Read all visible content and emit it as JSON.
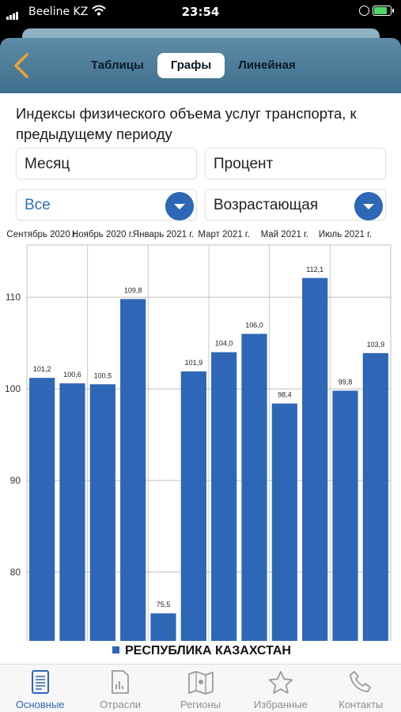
{
  "status_bar": {
    "carrier": "Beeline KZ",
    "time": "23:54"
  },
  "header": {
    "tabs": [
      {
        "label": "Таблицы"
      },
      {
        "label": "Графы",
        "active": true
      },
      {
        "label": "Линейная"
      }
    ]
  },
  "page_title": "Индексы физического объема услуг транспорта, к предыдущему периоду",
  "filters": {
    "period": "Месяц",
    "unit": "Процент",
    "region": "Все",
    "sort": "Возрастающая"
  },
  "chart_data": {
    "type": "bar",
    "title": "",
    "categories": [
      "Сентябрь 2020 г.",
      "",
      "Ноябрь 2020 г.",
      "",
      "Январь 2021 г.",
      "",
      "Март 2021 г.",
      "",
      "Май 2021 г.",
      "",
      "Июль 2021 г.",
      ""
    ],
    "top_axis_labels": [
      "Сентябрь 2020 г.",
      "Ноябрь 2020 г.",
      "Январь 2021 г.",
      "Март 2021 г.",
      "Май 2021 г.",
      "Июль 2021 г."
    ],
    "series": [
      {
        "name": "РЕСПУБЛИКА КАЗАХСТАН",
        "values": [
          101.2,
          100.6,
          100.5,
          109.8,
          75.5,
          101.9,
          104.0,
          106.0,
          98.4,
          112.1,
          99.8,
          103.9
        ]
      }
    ],
    "data_labels": [
      "101,2",
      "100,6",
      "100,5",
      "109,8",
      "75,5",
      "101,9",
      "104,0",
      "106,0",
      "98,4",
      "112,1",
      "99,8",
      "103,9"
    ],
    "y_ticks": [
      "80",
      "90",
      "100",
      "110"
    ],
    "ylim": [
      72.5,
      115.7
    ],
    "grid": true,
    "legend_position": "bottom",
    "colors": {
      "bar": "#2e67b5"
    }
  },
  "tabbar": {
    "items": [
      {
        "label": "Основные",
        "icon": "document-icon",
        "active": true
      },
      {
        "label": "Отрасли",
        "icon": "report-icon"
      },
      {
        "label": "Регионы",
        "icon": "map-icon"
      },
      {
        "label": "Избранные",
        "icon": "star-icon"
      },
      {
        "label": "Контакты",
        "icon": "phone-icon"
      }
    ]
  }
}
